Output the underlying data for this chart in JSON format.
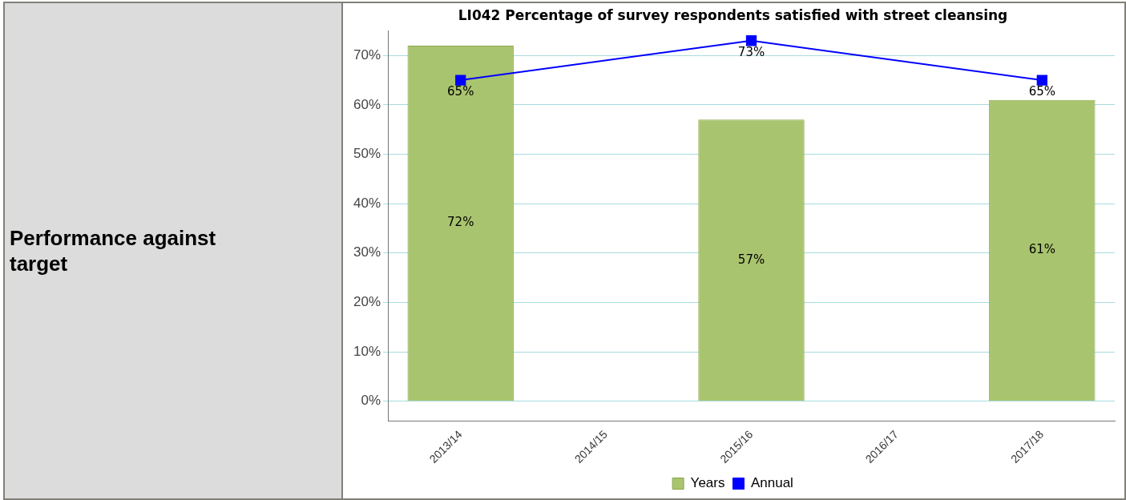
{
  "chart_data": {
    "type": "bar",
    "title": "LI042 Percentage of survey respondents satisfied with street cleansing",
    "annotations": [
      "Performance against target"
    ],
    "categories": [
      "2013/14",
      "2014/15",
      "2015/16",
      "2016/17",
      "2017/18"
    ],
    "series": [
      {
        "name": "Years",
        "color": "#a9c46e",
        "values": [
          72,
          null,
          57,
          null,
          61
        ],
        "value_labels": [
          "72%",
          null,
          "57%",
          null,
          "61%"
        ]
      },
      {
        "name": "Annual",
        "type": "line",
        "color": "#0000ff",
        "values": [
          65,
          null,
          73,
          null,
          65
        ],
        "value_labels": [
          "65%",
          null,
          "73%",
          null,
          "65%"
        ],
        "marker": "square"
      }
    ],
    "ylim": [
      -4,
      75
    ],
    "yticks": [
      {
        "value": 0,
        "label": "0%"
      },
      {
        "value": 10,
        "label": "10%"
      },
      {
        "value": 20,
        "label": "20%"
      },
      {
        "value": 30,
        "label": "30%"
      },
      {
        "value": 40,
        "label": "40%"
      },
      {
        "value": 50,
        "label": "50%"
      },
      {
        "value": 60,
        "label": "60%"
      },
      {
        "value": 70,
        "label": "70%"
      }
    ],
    "grid": "y",
    "legend": "bottom"
  }
}
